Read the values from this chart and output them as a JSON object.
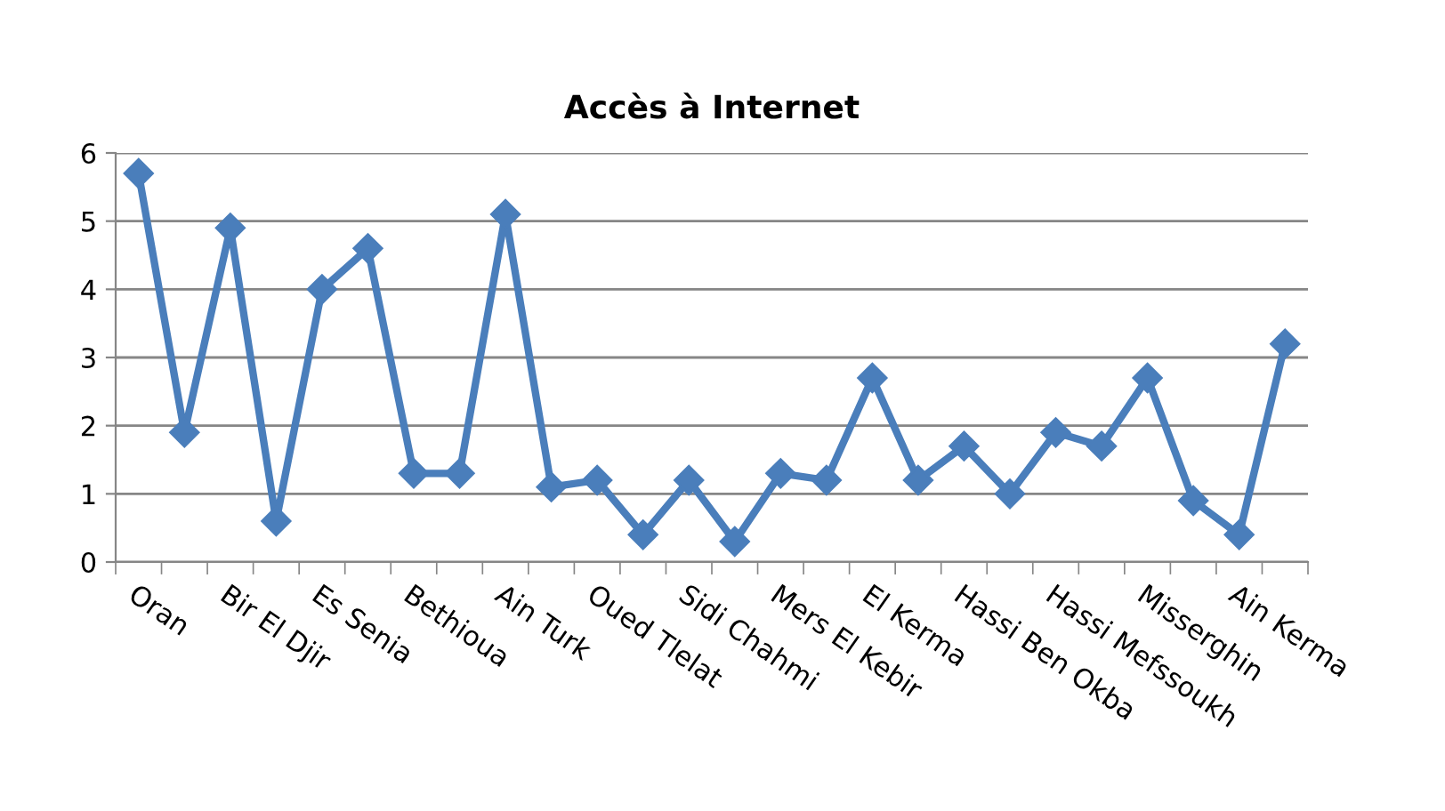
{
  "chart_data": {
    "type": "line",
    "title": "Accès à Internet",
    "categories": [
      "Oran",
      null,
      "Bir El Djir",
      null,
      "Es Senia",
      null,
      "Bethioua",
      null,
      "Ain Turk",
      null,
      "Oued Tlelat",
      null,
      "Sidi Chahmi",
      null,
      "Mers El Kebir",
      null,
      "El Kerma",
      null,
      "Hassi Ben Okba",
      null,
      "Hassi Mefssoukh",
      null,
      "Misserghin",
      null,
      "Ain Kerma",
      null
    ],
    "series": [
      {
        "color": "#4a7ebb",
        "values": [
          5.7,
          1.9,
          4.9,
          0.6,
          4.0,
          4.6,
          1.3,
          1.3,
          5.1,
          1.1,
          1.2,
          0.4,
          1.2,
          0.3,
          1.3,
          1.2,
          2.7,
          1.2,
          1.7,
          1.0,
          1.9,
          1.7,
          2.7,
          0.9,
          0.4,
          3.2
        ]
      }
    ],
    "ylim": [
      0,
      6
    ],
    "yticks": [
      0,
      1,
      2,
      3,
      4,
      5,
      6
    ],
    "grid": "y",
    "marker": "diamond",
    "line_style": "solid"
  }
}
